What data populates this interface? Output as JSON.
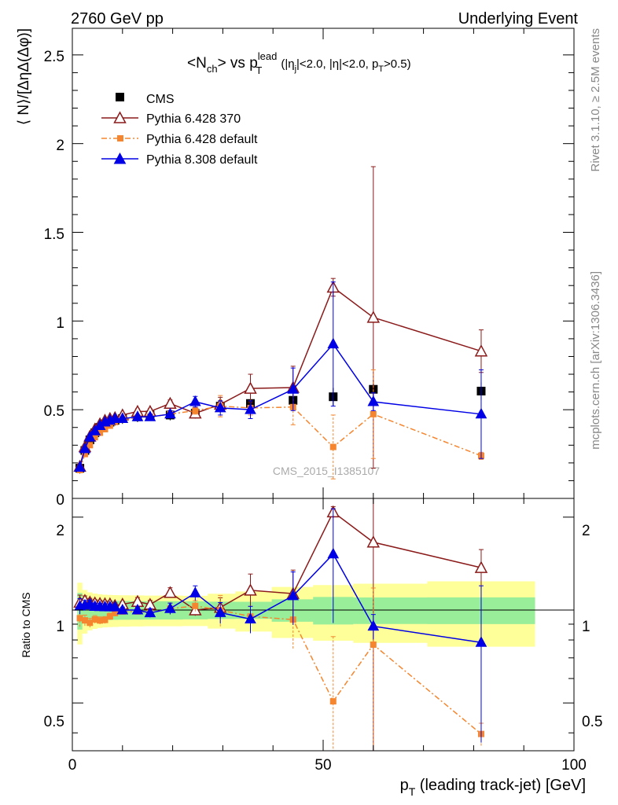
{
  "header": {
    "left": "2760 GeV pp",
    "right": "Underlying Event",
    "watermark": "CMS_2015_I1385107",
    "side_top": "Rivet 3.1.10, ≥ 2.5M events",
    "side_bottom": "mcplots.cern.ch [arXiv:1306.3436]"
  },
  "title": {
    "prefix": "<N",
    "prefix_sub": "ch",
    "mid": "> vs p",
    "mid_sup": "lead",
    "mid_sub": "T",
    "cuts": "(|η",
    "cuts_sub": "j",
    "cuts_mid": "|<2.0, |η|<2.0, p",
    "cuts_sub2": "T",
    "cuts_end": ">0.5)"
  },
  "axes": {
    "ylabel_main": "⟨ N⟩/[ΔηΔ(Δφ)]",
    "ylabel_ratio": "Ratio to CMS",
    "xlabel_pre": "p",
    "xlabel_sub": "T",
    "xlabel_post": " (leading track-jet) [GeV]",
    "main_yticks": [
      "0",
      "0.5",
      "1",
      "1.5",
      "2",
      "2.5"
    ],
    "ratio_yticks": [
      "0.5",
      "1",
      "2"
    ],
    "xticks": [
      "0",
      "50",
      "100"
    ]
  },
  "chart_data": {
    "type": "scatter",
    "x": [
      1.5,
      2.5,
      3.5,
      4.5,
      5.5,
      6.5,
      7.5,
      8.5,
      10,
      13,
      15.5,
      19.5,
      24.5,
      29.5,
      35.5,
      44,
      52,
      60,
      81.5
    ],
    "xlim": [
      0,
      100
    ],
    "ylim_main": [
      0,
      2.65
    ],
    "ylim_ratio": [
      0.35,
      2.3
    ],
    "ratio_log": true,
    "legend_position": "top-left",
    "series": [
      {
        "name": "CMS",
        "key": "cms",
        "color": "#000000",
        "marker": "square",
        "values": [
          0.17,
          0.27,
          0.33,
          0.37,
          0.4,
          0.42,
          0.43,
          0.44,
          0.45,
          0.46,
          0.47,
          0.47,
          0.48,
          0.52,
          0.535,
          0.553,
          0.573,
          0.615,
          0.605
        ],
        "band_inner": [
          0.03,
          0.03,
          0.03,
          0.03,
          0.03,
          0.03,
          0.03,
          0.03,
          0.03,
          0.03,
          0.03,
          0.03,
          0.03,
          0.03,
          0.03,
          0.04,
          0.05,
          0.05,
          0.05
        ],
        "band_outer": [
          0.05,
          0.05,
          0.05,
          0.05,
          0.05,
          0.05,
          0.05,
          0.05,
          0.05,
          0.05,
          0.05,
          0.05,
          0.05,
          0.06,
          0.07,
          0.09,
          0.1,
          0.11,
          0.12
        ]
      },
      {
        "name": "Pythia 6.428 370",
        "key": "p370",
        "color": "#8b1a1a",
        "marker": "triangle-open",
        "dash": "",
        "values": [
          0.18,
          0.29,
          0.35,
          0.39,
          0.42,
          0.44,
          0.45,
          0.455,
          0.47,
          0.49,
          0.49,
          0.535,
          0.48,
          0.53,
          0.62,
          0.625,
          1.19,
          1.02,
          0.83
        ],
        "err": [
          0.01,
          0.01,
          0.01,
          0.01,
          0.01,
          0.01,
          0.01,
          0.01,
          0.01,
          0.015,
          0.015,
          0.02,
          0.02,
          0.04,
          0.08,
          0.12,
          0.05,
          0.85,
          0.12
        ]
      },
      {
        "name": "Pythia 6.428 default",
        "key": "p6def",
        "color": "#f5862f",
        "marker": "square-small",
        "dash": "7,3,2,3",
        "values": [
          0.16,
          0.25,
          0.3,
          0.345,
          0.37,
          0.39,
          0.41,
          0.43,
          0.445,
          0.455,
          0.46,
          0.475,
          0.495,
          0.52,
          0.51,
          0.515,
          0.29,
          0.475,
          0.24
        ],
        "err": [
          0.01,
          0.01,
          0.01,
          0.01,
          0.01,
          0.01,
          0.01,
          0.01,
          0.01,
          0.01,
          0.015,
          0.02,
          0.02,
          0.06,
          0.04,
          0.1,
          0.18,
          0.25,
          0.02
        ]
      },
      {
        "name": "Pythia 8.308 default",
        "key": "p8def",
        "color": "#0000e6",
        "marker": "triangle-filled",
        "dash": "",
        "values": [
          0.175,
          0.28,
          0.345,
          0.38,
          0.41,
          0.43,
          0.44,
          0.45,
          0.45,
          0.46,
          0.46,
          0.475,
          0.545,
          0.51,
          0.5,
          0.615,
          0.87,
          0.545,
          0.475
        ],
        "err": [
          0.01,
          0.01,
          0.01,
          0.01,
          0.01,
          0.01,
          0.01,
          0.01,
          0.01,
          0.01,
          0.015,
          0.02,
          0.03,
          0.04,
          0.05,
          0.12,
          0.35,
          0.05,
          0.25
        ]
      }
    ]
  }
}
